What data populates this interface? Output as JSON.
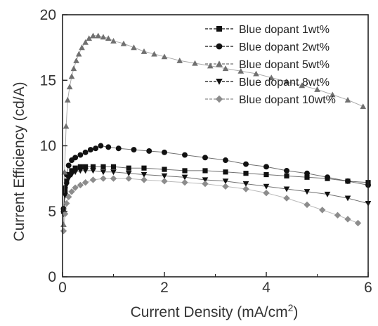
{
  "chart_data": {
    "type": "scatter",
    "xlabel": "Current Density (mA/cm",
    "xlabel_sup": "2",
    "xlabel_close": ")",
    "ylabel": "Current Efficiency (cd/A)",
    "xlim": [
      0,
      6
    ],
    "ylim": [
      0,
      20
    ],
    "xticks": [
      0,
      2,
      4,
      6
    ],
    "yticks": [
      0,
      5,
      10,
      15,
      20
    ],
    "legend_position": "top-right",
    "grid": false,
    "series": [
      {
        "name": "Blue dopant 1wt%",
        "marker": "square",
        "color": "#111111",
        "x": [
          0.02,
          0.05,
          0.08,
          0.12,
          0.18,
          0.25,
          0.35,
          0.45,
          0.6,
          0.8,
          1.0,
          1.3,
          1.6,
          2.0,
          2.4,
          2.8,
          3.2,
          3.6,
          4.0,
          4.4,
          4.8,
          5.2,
          5.6,
          6.0
        ],
        "y": [
          5.0,
          6.5,
          7.3,
          7.8,
          8.1,
          8.3,
          8.4,
          8.4,
          8.4,
          8.4,
          8.4,
          8.3,
          8.3,
          8.2,
          8.1,
          8.1,
          8.0,
          7.9,
          7.8,
          7.7,
          7.6,
          7.5,
          7.3,
          7.2
        ]
      },
      {
        "name": "Blue dopant 2wt%",
        "marker": "circle",
        "color": "#111111",
        "x": [
          0.02,
          0.05,
          0.08,
          0.12,
          0.18,
          0.25,
          0.35,
          0.45,
          0.55,
          0.65,
          0.75,
          0.9,
          1.1,
          1.4,
          1.7,
          2.0,
          2.4,
          2.8,
          3.2,
          3.6,
          4.0,
          4.4,
          4.8,
          5.2,
          5.6,
          6.0
        ],
        "y": [
          5.2,
          6.8,
          7.8,
          8.5,
          8.9,
          9.1,
          9.3,
          9.5,
          9.7,
          9.8,
          10.0,
          9.9,
          9.8,
          9.7,
          9.6,
          9.5,
          9.3,
          9.1,
          8.9,
          8.6,
          8.4,
          8.1,
          7.9,
          7.6,
          7.3,
          7.0
        ]
      },
      {
        "name": "Blue dopant 5wt%",
        "marker": "triangle-up",
        "color": "#707070",
        "x": [
          0.02,
          0.04,
          0.07,
          0.1,
          0.14,
          0.18,
          0.22,
          0.27,
          0.32,
          0.38,
          0.45,
          0.52,
          0.6,
          0.7,
          0.8,
          0.9,
          1.0,
          1.2,
          1.4,
          1.6,
          1.8,
          2.0,
          2.3,
          2.6,
          2.9,
          3.2,
          3.5,
          3.8,
          4.1,
          4.4,
          4.7,
          5.0,
          5.3,
          5.6,
          5.9
        ],
        "y": [
          4.0,
          8.0,
          11.5,
          13.5,
          14.5,
          15.3,
          15.9,
          16.5,
          17.0,
          17.5,
          17.9,
          18.2,
          18.4,
          18.4,
          18.3,
          18.2,
          18.0,
          17.8,
          17.5,
          17.2,
          17.0,
          16.8,
          16.5,
          16.3,
          16.1,
          15.9,
          15.7,
          15.5,
          15.2,
          14.9,
          14.6,
          14.3,
          13.9,
          13.5,
          13.0
        ]
      },
      {
        "name": "Blue dopant 8wt%",
        "marker": "triangle-down",
        "color": "#111111",
        "x": [
          0.02,
          0.05,
          0.08,
          0.12,
          0.18,
          0.25,
          0.35,
          0.45,
          0.6,
          0.8,
          1.0,
          1.3,
          1.6,
          2.0,
          2.4,
          2.8,
          3.2,
          3.6,
          4.0,
          4.4,
          4.8,
          5.2,
          5.6,
          6.0
        ],
        "y": [
          4.8,
          6.2,
          7.0,
          7.5,
          7.8,
          8.0,
          8.1,
          8.1,
          8.1,
          8.0,
          8.0,
          7.9,
          7.8,
          7.7,
          7.6,
          7.4,
          7.3,
          7.1,
          6.9,
          6.7,
          6.5,
          6.3,
          6.0,
          5.6
        ]
      },
      {
        "name": "Blue dopant 10wt%",
        "marker": "diamond",
        "color": "#8c8c8c",
        "x": [
          0.02,
          0.05,
          0.08,
          0.12,
          0.18,
          0.25,
          0.35,
          0.45,
          0.6,
          0.8,
          1.0,
          1.3,
          1.6,
          2.0,
          2.4,
          2.8,
          3.2,
          3.6,
          4.0,
          4.4,
          4.8,
          5.1,
          5.4,
          5.6,
          5.8
        ],
        "y": [
          3.5,
          4.8,
          5.6,
          6.1,
          6.5,
          6.8,
          7.0,
          7.2,
          7.4,
          7.5,
          7.5,
          7.5,
          7.4,
          7.3,
          7.2,
          7.1,
          6.9,
          6.7,
          6.4,
          6.0,
          5.5,
          5.1,
          4.7,
          4.4,
          4.1
        ]
      }
    ]
  }
}
